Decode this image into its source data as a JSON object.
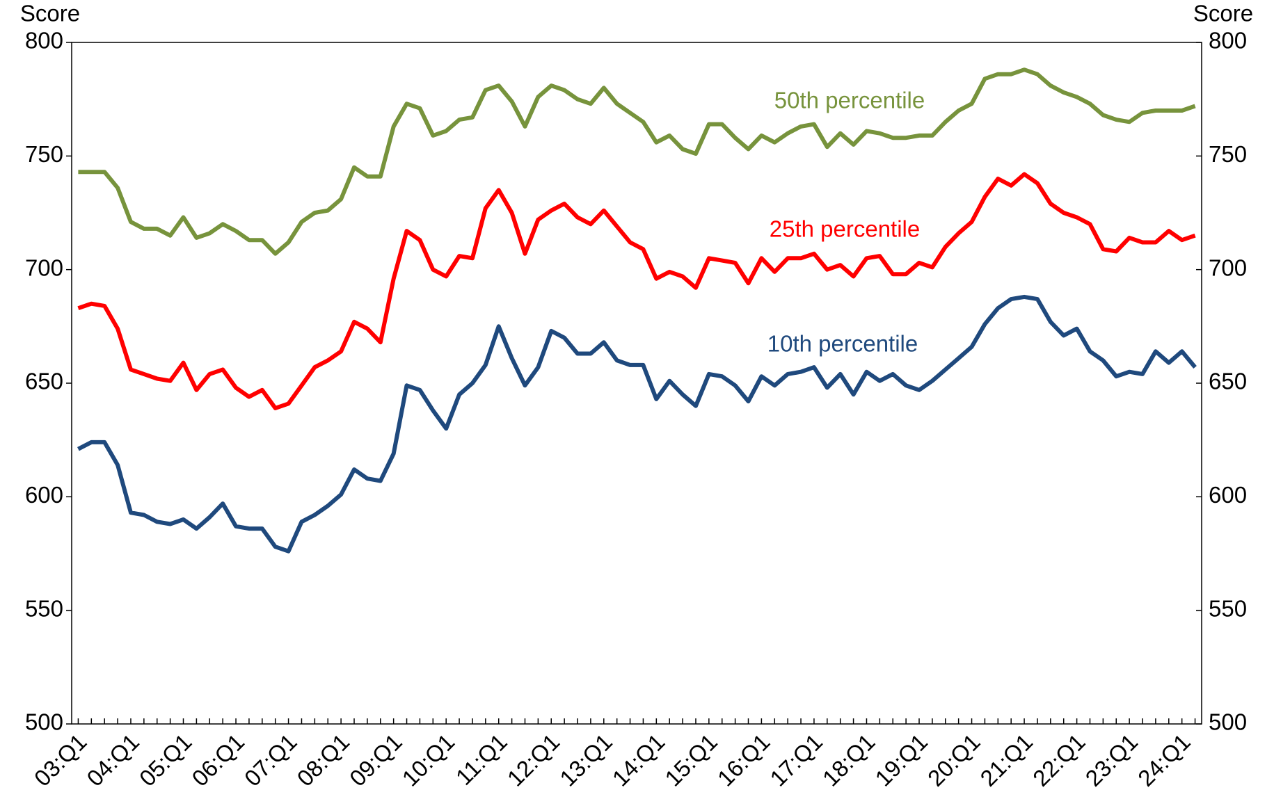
{
  "chart_data": {
    "type": "line",
    "ylabel": "Score",
    "y2label": "Score",
    "categories": [
      "03:Q1",
      null,
      null,
      null,
      "04:Q1",
      null,
      null,
      null,
      "05:Q1",
      null,
      null,
      null,
      "06:Q1",
      null,
      null,
      null,
      "07:Q1",
      null,
      null,
      null,
      "08:Q1",
      null,
      null,
      null,
      "09:Q1",
      null,
      null,
      null,
      "10:Q1",
      null,
      null,
      null,
      "11:Q1",
      null,
      null,
      null,
      "12:Q1",
      null,
      null,
      null,
      "13:Q1",
      null,
      null,
      null,
      "14:Q1",
      null,
      null,
      null,
      "15:Q1",
      null,
      null,
      null,
      "16:Q1",
      null,
      null,
      null,
      "17:Q1",
      null,
      null,
      null,
      "18:Q1",
      null,
      null,
      null,
      "19:Q1",
      null,
      null,
      null,
      "20:Q1",
      null,
      null,
      null,
      "21:Q1",
      null,
      null,
      null,
      "22:Q1",
      null,
      null,
      null,
      "23:Q1",
      null,
      null,
      null,
      "24:Q1",
      null
    ],
    "series": [
      {
        "name": "50th percentile",
        "color": "#77933c",
        "values": [
          743,
          743,
          743,
          736,
          721,
          718,
          718,
          715,
          723,
          714,
          716,
          720,
          717,
          713,
          713,
          707,
          712,
          721,
          725,
          726,
          731,
          745,
          741,
          741,
          763,
          773,
          771,
          759,
          761,
          766,
          767,
          779,
          781,
          774,
          763,
          776,
          781,
          779,
          775,
          773,
          780,
          773,
          769,
          765,
          756,
          759,
          753,
          751,
          764,
          764,
          758,
          753,
          759,
          756,
          760,
          763,
          764,
          754,
          760,
          755,
          761,
          760,
          758,
          758,
          759,
          759,
          765,
          770,
          773,
          784,
          786,
          786,
          788,
          786,
          781,
          778,
          776,
          773,
          768,
          766,
          765,
          769,
          770,
          770,
          770,
          772
        ]
      },
      {
        "name": "25th percentile",
        "color": "#ff0000",
        "values": [
          683,
          685,
          684,
          674,
          656,
          654,
          652,
          651,
          659,
          647,
          654,
          656,
          648,
          644,
          647,
          639,
          641,
          649,
          657,
          660,
          664,
          677,
          674,
          668,
          696,
          717,
          713,
          700,
          697,
          706,
          705,
          727,
          735,
          725,
          707,
          722,
          726,
          729,
          723,
          720,
          726,
          719,
          712,
          709,
          696,
          699,
          697,
          692,
          705,
          704,
          703,
          694,
          705,
          699,
          705,
          705,
          707,
          700,
          702,
          697,
          705,
          706,
          698,
          698,
          703,
          701,
          710,
          716,
          721,
          732,
          740,
          737,
          742,
          738,
          729,
          725,
          723,
          720,
          709,
          708,
          714,
          712,
          712,
          717,
          713,
          715
        ]
      },
      {
        "name": "10th percentile",
        "color": "#1f497d",
        "values": [
          621,
          624,
          624,
          614,
          593,
          592,
          589,
          588,
          590,
          586,
          591,
          597,
          587,
          586,
          586,
          578,
          576,
          589,
          592,
          596,
          601,
          612,
          608,
          607,
          619,
          649,
          647,
          638,
          630,
          645,
          650,
          658,
          675,
          661,
          649,
          657,
          673,
          670,
          663,
          663,
          668,
          660,
          658,
          658,
          643,
          651,
          645,
          640,
          654,
          653,
          649,
          642,
          653,
          649,
          654,
          655,
          657,
          648,
          654,
          645,
          655,
          651,
          654,
          649,
          647,
          651,
          656,
          661,
          666,
          676,
          683,
          687,
          688,
          687,
          677,
          671,
          674,
          664,
          660,
          653,
          655,
          654,
          664,
          659,
          664,
          657
        ]
      }
    ],
    "ylim": [
      500,
      800
    ],
    "yticks": [
      500,
      550,
      600,
      650,
      700,
      750,
      800
    ],
    "y2lim": [
      500,
      800
    ],
    "y2ticks": [
      500,
      550,
      600,
      650,
      700,
      750,
      800
    ]
  }
}
